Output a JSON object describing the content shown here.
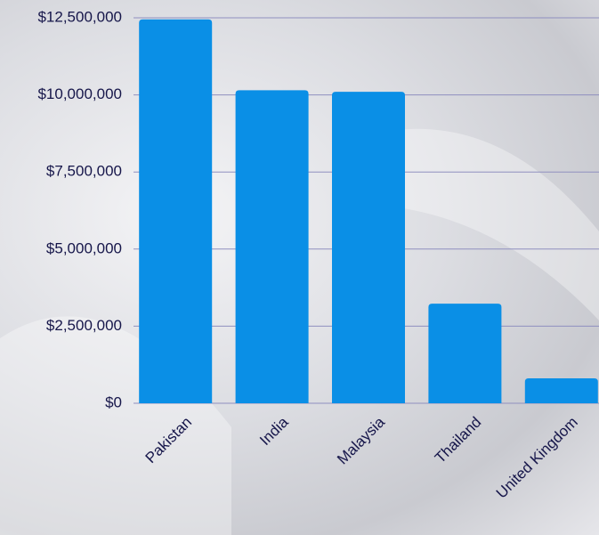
{
  "chart_data": {
    "type": "bar",
    "categories": [
      "Pakistan",
      "India",
      "Malaysia",
      "Thailand",
      "United Kingdom"
    ],
    "values": [
      12450000,
      10150000,
      10100000,
      3230000,
      810000
    ],
    "color": "#0a8fe6",
    "ylim": [
      0,
      12500000
    ],
    "yticks": [
      {
        "value": 0,
        "label": "$0"
      },
      {
        "value": 2500000,
        "label": "$2,500,000"
      },
      {
        "value": 5000000,
        "label": "$5,000,000"
      },
      {
        "value": 7500000,
        "label": "$7,500,000"
      },
      {
        "value": 10000000,
        "label": "$10,000,000"
      },
      {
        "value": 12500000,
        "label": "$12,500,000"
      }
    ],
    "grid": true
  }
}
